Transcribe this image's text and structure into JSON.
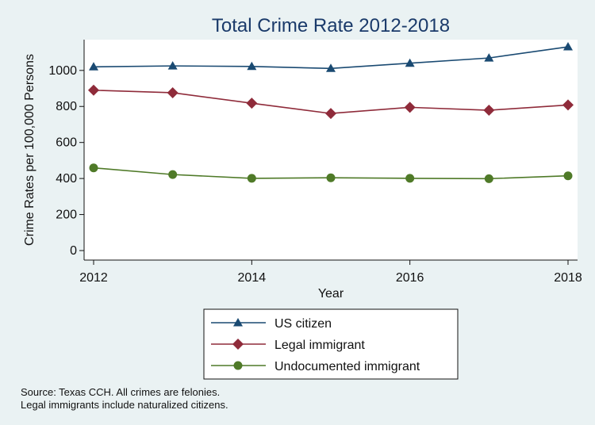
{
  "chart_data": {
    "type": "line",
    "title": "Total Crime Rate 2012-2018",
    "xlabel": "Year",
    "ylabel": "Crime Rates per 100,000 Persons",
    "x": [
      2012,
      2013,
      2014,
      2015,
      2016,
      2017,
      2018
    ],
    "xticks": [
      "2012",
      "2014",
      "2016",
      "2018"
    ],
    "yticks": [
      "0",
      "200",
      "400",
      "600",
      "800",
      "1000"
    ],
    "xlim": [
      2012,
      2018
    ],
    "ylim": [
      0,
      1140
    ],
    "grid": false,
    "legend_position": "bottom",
    "series": [
      {
        "name": "US citizen",
        "color": "#1a4a72",
        "marker": "triangle",
        "values": [
          1020,
          1025,
          1022,
          1011,
          1040,
          1069,
          1131
        ]
      },
      {
        "name": "Legal immigrant",
        "color": "#8f2b3a",
        "marker": "diamond",
        "values": [
          890,
          876,
          818,
          761,
          795,
          779,
          808
        ]
      },
      {
        "name": "Undocumented immigrant",
        "color": "#4f7a28",
        "marker": "circle",
        "values": [
          459,
          422,
          401,
          404,
          401,
          399,
          415
        ]
      }
    ]
  },
  "footnotes": [
    "Source: Texas CCH. All crimes are felonies.",
    "Legal immigrants include naturalized citizens."
  ]
}
